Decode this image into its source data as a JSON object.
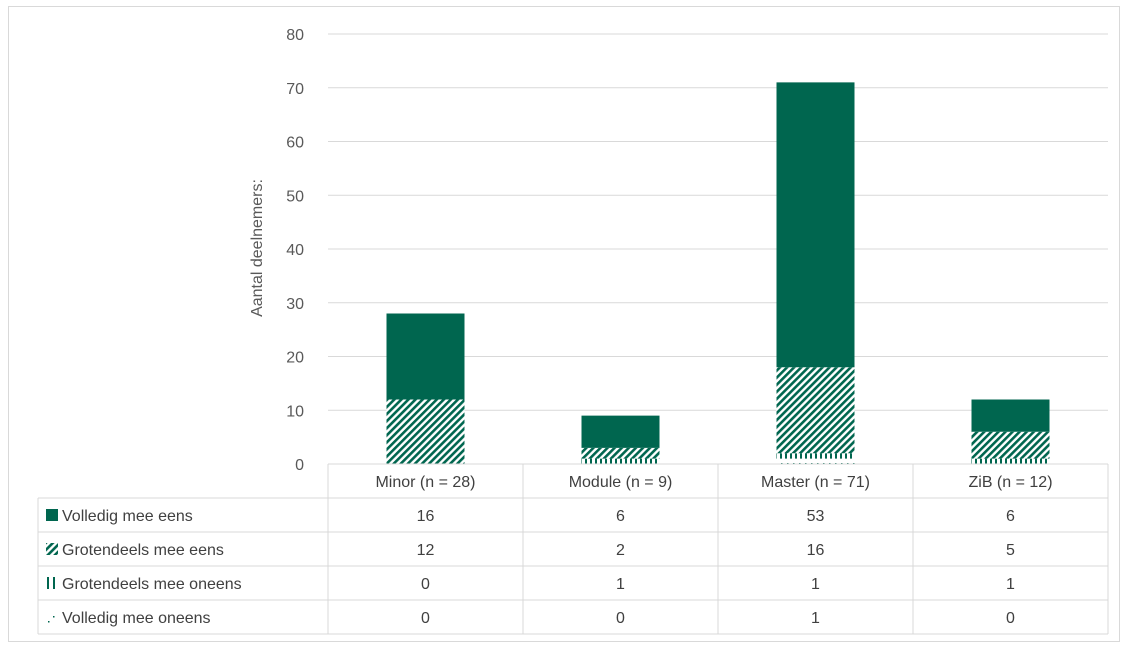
{
  "chart_data": {
    "type": "bar",
    "stacked": true,
    "categories": [
      "Minor (n = 28)",
      "Module (n = 9)",
      "Master (n = 71)",
      "ZiB (n = 12)"
    ],
    "series": [
      {
        "name": "Volledig mee eens",
        "values": [
          16,
          6,
          53,
          6
        ],
        "color": "#00664f",
        "pattern": "solid"
      },
      {
        "name": "Grotendeels mee eens",
        "values": [
          12,
          2,
          16,
          5
        ],
        "color": "#00664f",
        "pattern": "diagonal-hatch"
      },
      {
        "name": "Grotendeels mee oneens",
        "values": [
          0,
          1,
          1,
          1
        ],
        "color": "#00664f",
        "pattern": "vertical-stripes"
      },
      {
        "name": "Volledig mee oneens",
        "values": [
          0,
          0,
          1,
          0
        ],
        "color": "#00664f",
        "pattern": "dots"
      }
    ],
    "ylabel": "Aantal deelnemers:",
    "ylim": [
      0,
      80
    ],
    "yticks": [
      0,
      10,
      20,
      30,
      40,
      50,
      60,
      70,
      80
    ],
    "grid": true,
    "legend": "data-table-left"
  }
}
